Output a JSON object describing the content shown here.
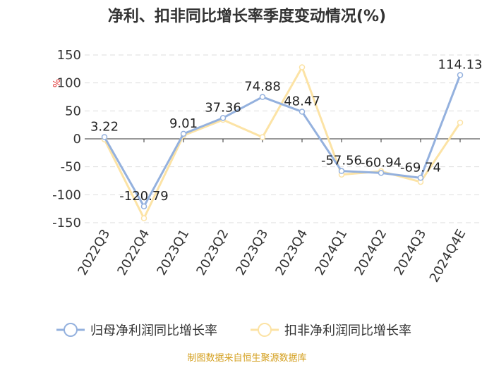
{
  "chart_data": {
    "type": "line",
    "title": "净利、扣非同比增长率季度变动情况(%)",
    "ylabel": "%",
    "categories": [
      "2022Q3",
      "2022Q4",
      "2023Q1",
      "2023Q2",
      "2023Q3",
      "2023Q4",
      "2024Q1",
      "2024Q2",
      "2024Q3",
      "2024Q4E"
    ],
    "ylim": [
      -150,
      150
    ],
    "yticks": [
      -150,
      -100,
      -50,
      0,
      50,
      100,
      150
    ],
    "grid": true,
    "legend_position": "bottom",
    "series": [
      {
        "name": "归母净利润同比增长率",
        "color": "#94b1de",
        "values": [
          3.22,
          -120.79,
          9.01,
          37.36,
          74.88,
          48.47,
          -57.56,
          -60.94,
          -69.74,
          114.13
        ],
        "labels": [
          "3.22",
          "-120.79",
          "9.01",
          "37.36",
          "74.88",
          "48.47",
          "-57.56",
          "-60.94",
          "-69.74",
          "114.13"
        ]
      },
      {
        "name": "扣非净利润同比增长率",
        "color": "#fce3a5",
        "values": [
          -1,
          -142,
          6,
          34,
          3,
          128,
          -64,
          -58,
          -77,
          29
        ]
      }
    ]
  },
  "source": "制图数据来自恒生聚源数据库"
}
